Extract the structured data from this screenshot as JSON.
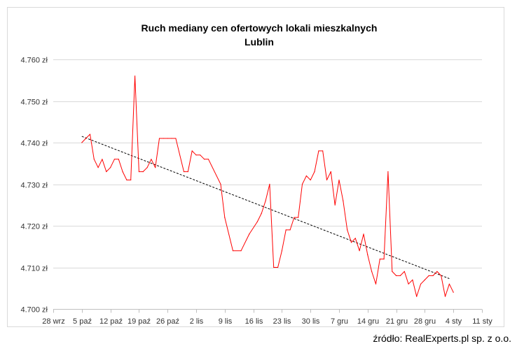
{
  "chart_data": {
    "type": "line",
    "title": "Ruch mediany cen ofertowych lokali mieszkalnych",
    "subtitle": "Lublin",
    "xlabel": "",
    "ylabel": "",
    "y_ticks": [
      "4.700 zł",
      "4.710 zł",
      "4.720 zł",
      "4.730 zł",
      "4.740 zł",
      "4.750 zł",
      "4.760 zł"
    ],
    "y_tick_values": [
      4700,
      4710,
      4720,
      4730,
      4740,
      4750,
      4760
    ],
    "ylim": [
      4700,
      4760
    ],
    "x_ticks": [
      "28 wrz",
      "5 paź",
      "12 paź",
      "19 paź",
      "26 paź",
      "2 lis",
      "9 lis",
      "16 lis",
      "23 lis",
      "30 lis",
      "7 gru",
      "14 gru",
      "21 gru",
      "28 gru",
      "4 sty",
      "11 sty"
    ],
    "xlim": [
      "2020-09-28",
      "2021-01-11"
    ],
    "grid": "horizontal",
    "trendline": {
      "style": "dashed",
      "color": "#000000",
      "start": [
        "2020-10-05",
        4741.5
      ],
      "end": [
        "2021-01-03",
        4707.3
      ]
    },
    "series": [
      {
        "color": "#ff0000",
        "points": [
          [
            "2020-10-05",
            4740
          ],
          [
            "2020-10-06",
            4741
          ],
          [
            "2020-10-07",
            4742
          ],
          [
            "2020-10-08",
            4736
          ],
          [
            "2020-10-09",
            4734
          ],
          [
            "2020-10-10",
            4736
          ],
          [
            "2020-10-11",
            4733
          ],
          [
            "2020-10-12",
            4734
          ],
          [
            "2020-10-13",
            4736
          ],
          [
            "2020-10-14",
            4736
          ],
          [
            "2020-10-15",
            4733
          ],
          [
            "2020-10-16",
            4731
          ],
          [
            "2020-10-17",
            4731
          ],
          [
            "2020-10-18",
            4756
          ],
          [
            "2020-10-19",
            4733
          ],
          [
            "2020-10-20",
            4733
          ],
          [
            "2020-10-21",
            4734
          ],
          [
            "2020-10-22",
            4736
          ],
          [
            "2020-10-23",
            4734
          ],
          [
            "2020-10-24",
            4741
          ],
          [
            "2020-10-25",
            4741
          ],
          [
            "2020-10-26",
            4741
          ],
          [
            "2020-10-27",
            4741
          ],
          [
            "2020-10-28",
            4741
          ],
          [
            "2020-10-30",
            4733
          ],
          [
            "2020-10-31",
            4733
          ],
          [
            "2020-11-01",
            4738
          ],
          [
            "2020-11-02",
            4737
          ],
          [
            "2020-11-03",
            4737
          ],
          [
            "2020-11-04",
            4736
          ],
          [
            "2020-11-05",
            4736
          ],
          [
            "2020-11-08",
            4730
          ],
          [
            "2020-11-09",
            4722
          ],
          [
            "2020-11-11",
            4714
          ],
          [
            "2020-11-13",
            4714
          ],
          [
            "2020-11-15",
            4718
          ],
          [
            "2020-11-17",
            4721
          ],
          [
            "2020-11-18",
            4723
          ],
          [
            "2020-11-19",
            4726
          ],
          [
            "2020-11-20",
            4730
          ],
          [
            "2020-11-21",
            4710
          ],
          [
            "2020-11-22",
            4710
          ],
          [
            "2020-11-23",
            4714
          ],
          [
            "2020-11-24",
            4719
          ],
          [
            "2020-11-25",
            4719
          ],
          [
            "2020-11-26",
            4722
          ],
          [
            "2020-11-27",
            4722
          ],
          [
            "2020-11-28",
            4730
          ],
          [
            "2020-11-29",
            4732
          ],
          [
            "2020-11-30",
            4731
          ],
          [
            "2020-12-01",
            4733
          ],
          [
            "2020-12-02",
            4738
          ],
          [
            "2020-12-03",
            4738
          ],
          [
            "2020-12-04",
            4731
          ],
          [
            "2020-12-05",
            4733
          ],
          [
            "2020-12-06",
            4725
          ],
          [
            "2020-12-07",
            4731
          ],
          [
            "2020-12-08",
            4726
          ],
          [
            "2020-12-09",
            4719
          ],
          [
            "2020-12-10",
            4716
          ],
          [
            "2020-12-11",
            4717
          ],
          [
            "2020-12-12",
            4714
          ],
          [
            "2020-12-13",
            4718
          ],
          [
            "2020-12-14",
            4713
          ],
          [
            "2020-12-15",
            4709
          ],
          [
            "2020-12-16",
            4706
          ],
          [
            "2020-12-17",
            4712
          ],
          [
            "2020-12-18",
            4712
          ],
          [
            "2020-12-19",
            4733
          ],
          [
            "2020-12-20",
            4709
          ],
          [
            "2020-12-21",
            4708
          ],
          [
            "2020-12-22",
            4708
          ],
          [
            "2020-12-23",
            4709
          ],
          [
            "2020-12-24",
            4706
          ],
          [
            "2020-12-25",
            4707
          ],
          [
            "2020-12-26",
            4703
          ],
          [
            "2020-12-27",
            4706
          ],
          [
            "2020-12-28",
            4707
          ],
          [
            "2020-12-29",
            4708
          ],
          [
            "2020-12-30",
            4708
          ],
          [
            "2020-12-31",
            4709
          ],
          [
            "2021-01-01",
            4708
          ],
          [
            "2021-01-02",
            4703
          ],
          [
            "2021-01-03",
            4706
          ],
          [
            "2021-01-04",
            4704
          ]
        ]
      }
    ]
  },
  "source": "źródło: RealExperts.pl sp. z o.o."
}
